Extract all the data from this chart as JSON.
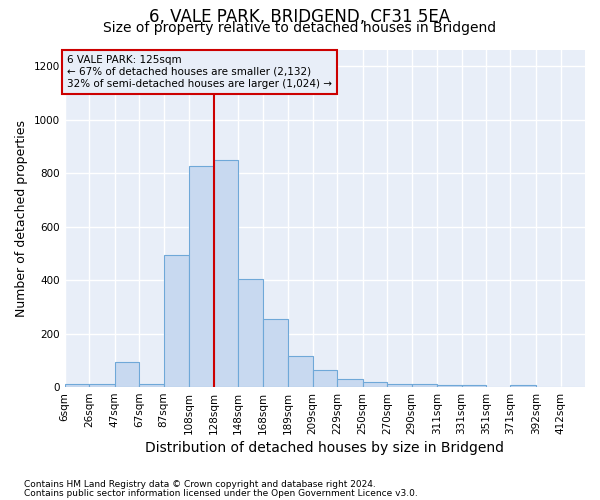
{
  "title": "6, VALE PARK, BRIDGEND, CF31 5EA",
  "subtitle": "Size of property relative to detached houses in Bridgend",
  "xlabel": "Distribution of detached houses by size in Bridgend",
  "ylabel": "Number of detached properties",
  "footnote1": "Contains HM Land Registry data © Crown copyright and database right 2024.",
  "footnote2": "Contains public sector information licensed under the Open Government Licence v3.0.",
  "annotation_line1": "6 VALE PARK: 125sqm",
  "annotation_line2": "← 67% of detached houses are smaller (2,132)",
  "annotation_line3": "32% of semi-detached houses are larger (1,024) →",
  "bar_color": "#c8d9f0",
  "bar_edge_color": "#6fa8d8",
  "vline_x": 128,
  "vline_color": "#cc0000",
  "annotation_box_edge_color": "#cc0000",
  "categories": [
    "6sqm",
    "26sqm",
    "47sqm",
    "67sqm",
    "87sqm",
    "108sqm",
    "128sqm",
    "148sqm",
    "168sqm",
    "189sqm",
    "209sqm",
    "229sqm",
    "250sqm",
    "270sqm",
    "290sqm",
    "311sqm",
    "331sqm",
    "351sqm",
    "371sqm",
    "392sqm",
    "412sqm"
  ],
  "bin_edges": [
    6,
    26,
    47,
    67,
    87,
    108,
    128,
    148,
    168,
    189,
    209,
    229,
    250,
    270,
    290,
    311,
    331,
    351,
    371,
    392,
    412
  ],
  "values": [
    10,
    10,
    95,
    10,
    495,
    825,
    850,
    405,
    255,
    118,
    65,
    32,
    20,
    12,
    12,
    8,
    8,
    2,
    8,
    2,
    0
  ],
  "ylim": [
    0,
    1260
  ],
  "yticks": [
    0,
    200,
    400,
    600,
    800,
    1000,
    1200
  ],
  "fig_bg": "#ffffff",
  "plot_bg": "#e8eef8",
  "grid_color": "#ffffff",
  "title_fontsize": 12,
  "subtitle_fontsize": 10,
  "axis_label_fontsize": 9,
  "tick_fontsize": 7.5,
  "footnote_fontsize": 6.5
}
